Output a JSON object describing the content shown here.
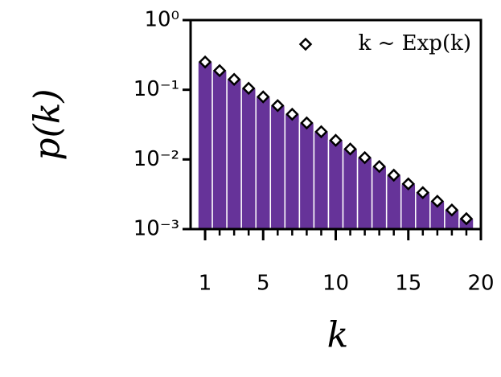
{
  "chart_data": {
    "type": "bar",
    "log_y": true,
    "x_label": "k",
    "y_label": "p(k)",
    "legend_label": "k ~ Exp(k)",
    "legend_loc": "upper right",
    "color": "#663399",
    "edge_color": "#ffffff",
    "marker_fill": "#ffffff",
    "marker_edge": "#000000",
    "x": [
      1,
      2,
      3,
      4,
      5,
      6,
      7,
      8,
      9,
      10,
      11,
      12,
      13,
      14,
      15,
      16,
      17,
      18,
      19
    ],
    "values": [
      0.25,
      0.188,
      0.141,
      0.105,
      0.0791,
      0.0593,
      0.0445,
      0.0334,
      0.025,
      0.0188,
      0.0141,
      0.0106,
      0.00792,
      0.00594,
      0.00446,
      0.00334,
      0.00251,
      0.00188,
      0.00141
    ],
    "xlim": [
      0,
      20
    ],
    "xticks": [
      1,
      5,
      10,
      15,
      20
    ],
    "ylim": [
      0.001,
      1
    ],
    "yticks": [
      {
        "value": 1,
        "label": "10⁰"
      },
      {
        "value": 0.1,
        "label": "10⁻¹"
      },
      {
        "value": 0.01,
        "label": "10⁻²"
      },
      {
        "value": 0.001,
        "label": "10⁻³"
      }
    ]
  }
}
